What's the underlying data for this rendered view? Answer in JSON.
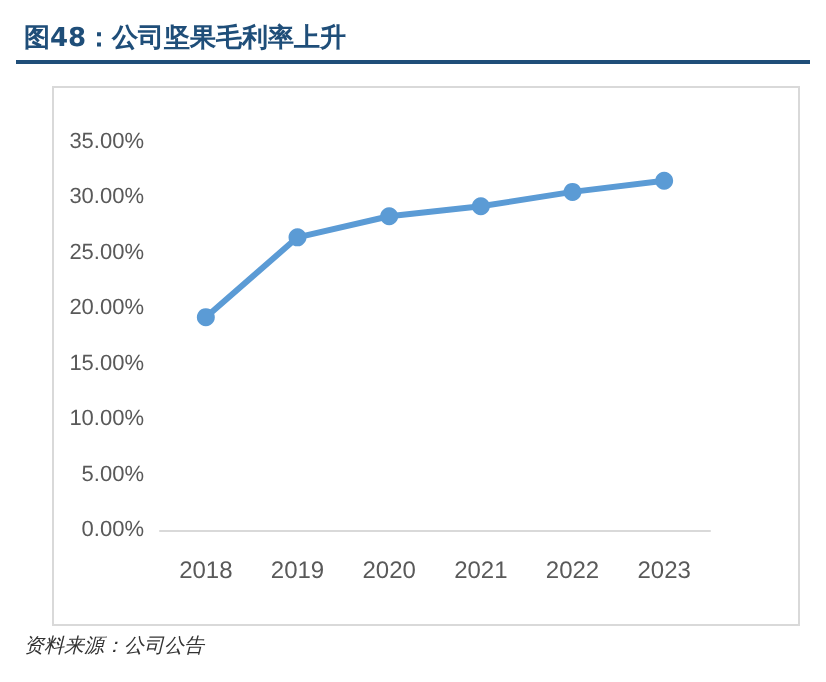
{
  "chart_data": {
    "type": "line",
    "title": "图48：公司坚果毛利率上升",
    "categories": [
      "2018",
      "2019",
      "2020",
      "2021",
      "2022",
      "2023"
    ],
    "series": [
      {
        "color": "#5b9bd5",
        "values": [
          19.2,
          26.4,
          28.3,
          29.2,
          30.5,
          31.5
        ]
      }
    ],
    "ylim": [
      0,
      35
    ],
    "yticks": [
      {
        "value": 0,
        "label": "0.00%"
      },
      {
        "value": 5,
        "label": "5.00%"
      },
      {
        "value": 10,
        "label": "10.00%"
      },
      {
        "value": 15,
        "label": "15.00%"
      },
      {
        "value": 20,
        "label": "20.00%"
      },
      {
        "value": 25,
        "label": "25.00%"
      },
      {
        "value": 30,
        "label": "30.00%"
      },
      {
        "value": 35,
        "label": "35.00%"
      }
    ],
    "grid": false,
    "marker": "circle",
    "line_style": "solid",
    "annotations": [
      "资料来源：公司公告"
    ]
  }
}
